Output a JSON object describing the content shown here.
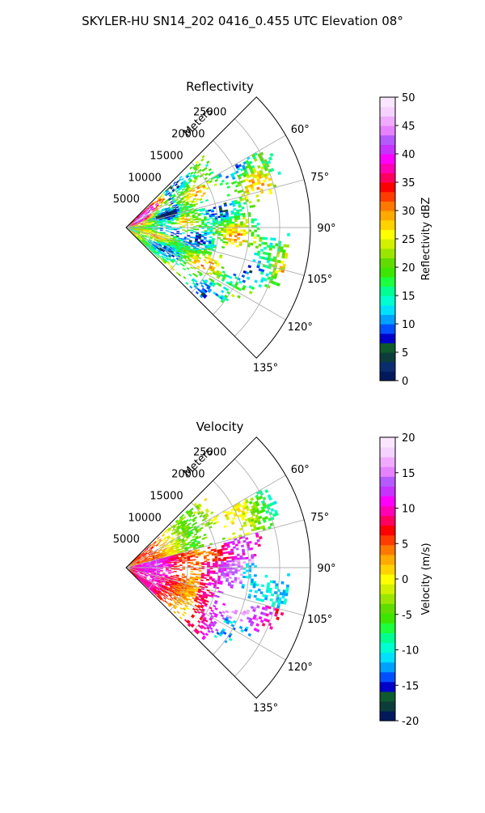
{
  "figure": {
    "title": "SKYLER-HU  SN14_202  0416_0.455 UTC Elevation 08°"
  },
  "chart_data": [
    {
      "type": "heatmap",
      "title": "Reflectivity",
      "radial_label": "Meters",
      "range_ticks": [
        "5000",
        "10000",
        "15000",
        "20000",
        "25000"
      ],
      "range_tick_values": [
        5000,
        10000,
        15000,
        20000,
        25000
      ],
      "range_max": 30000,
      "azimuth_range": [
        45,
        135
      ],
      "azimuth_ticks": [
        "60°",
        "75°",
        "90°",
        "105°",
        "120°",
        "135°"
      ],
      "azimuth_tick_values": [
        60,
        75,
        90,
        105,
        120,
        135
      ],
      "grid": true,
      "colorbar": {
        "label": "Reflectivity dBZ",
        "range": [
          0,
          50
        ],
        "ticks": [
          "0",
          "5",
          "10",
          "15",
          "20",
          "25",
          "30",
          "35",
          "40",
          "45",
          "50"
        ],
        "tick_values": [
          0,
          5,
          10,
          15,
          20,
          25,
          30,
          35,
          40,
          45,
          50
        ],
        "palette": [
          "#001a5c",
          "#0b2c6e",
          "#0c3d3a",
          "#0f5a2e",
          "#0000c8",
          "#0050ff",
          "#00a0ff",
          "#00e0ff",
          "#00ffd0",
          "#00ff90",
          "#1cff3c",
          "#3ce600",
          "#60dc00",
          "#9be600",
          "#d2f000",
          "#ffff00",
          "#ffd200",
          "#ffaa00",
          "#ff7800",
          "#ff3c00",
          "#ff0000",
          "#ff0060",
          "#ff00b4",
          "#ff00ff",
          "#c832ff",
          "#b45aff",
          "#e682ff",
          "#f0aaff",
          "#f5d2ff",
          "#fae6ff"
        ]
      }
    },
    {
      "type": "heatmap",
      "title": "Velocity",
      "radial_label": "Meters",
      "range_ticks": [
        "5000",
        "10000",
        "15000",
        "20000",
        "25000"
      ],
      "range_tick_values": [
        5000,
        10000,
        15000,
        20000,
        25000
      ],
      "range_max": 30000,
      "azimuth_range": [
        45,
        135
      ],
      "azimuth_ticks": [
        "60°",
        "75°",
        "90°",
        "105°",
        "120°",
        "135°"
      ],
      "azimuth_tick_values": [
        60,
        75,
        90,
        105,
        120,
        135
      ],
      "grid": true,
      "colorbar": {
        "label": "Velocity (m/s)",
        "range": [
          -20,
          20
        ],
        "ticks": [
          "-20",
          "-15",
          "-10",
          "-5",
          "0",
          "5",
          "10",
          "15",
          "20"
        ],
        "tick_values": [
          -20,
          -15,
          -10,
          -5,
          0,
          5,
          10,
          15,
          20
        ],
        "palette": [
          "#001a5c",
          "#0c3d3a",
          "#0f5a2e",
          "#0000c8",
          "#0050ff",
          "#00a0ff",
          "#00e0ff",
          "#00ffd0",
          "#00ff90",
          "#1cff3c",
          "#3ce600",
          "#60dc00",
          "#9be600",
          "#d2f000",
          "#ffff00",
          "#ffd200",
          "#ffaa00",
          "#ff7800",
          "#ff3c00",
          "#ff0000",
          "#ff0060",
          "#ff00b4",
          "#ff00ff",
          "#c832ff",
          "#b45aff",
          "#e682ff",
          "#f0aaff",
          "#f5d2ff",
          "#fae6ff"
        ]
      }
    }
  ]
}
